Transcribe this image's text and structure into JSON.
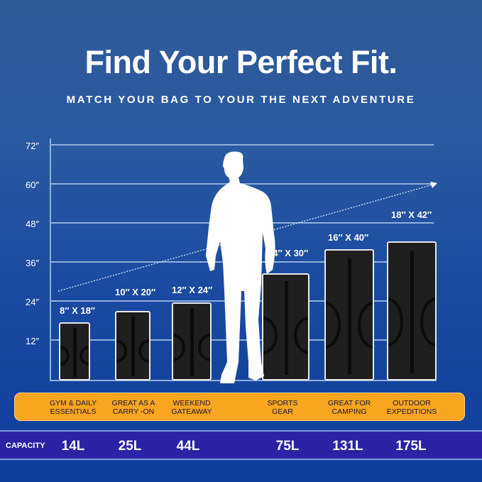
{
  "title": "Find Your Perfect Fit.",
  "subtitle": "MATCH YOUR BAG TO YOUR THE NEXT ADVENTURE",
  "height_ticks": [
    "72″",
    "60″",
    "48″",
    "36″",
    "24″",
    "12″"
  ],
  "bags": [
    {
      "size": "8″ X 18″",
      "use_line1": "GYM & DAILY",
      "use_line2": "ESSENTIALS",
      "capacity": "14L"
    },
    {
      "size": "10″ X 20″",
      "use_line1": "GREAT AS A",
      "use_line2": "CARRY -ON",
      "capacity": "25L"
    },
    {
      "size": "12″ X 24″",
      "use_line1": "WEEKEND",
      "use_line2": "GATEAWAY",
      "capacity": "44L"
    },
    {
      "size": "14″ X 30″",
      "use_line1": "SPORTS",
      "use_line2": "GEAR",
      "capacity": "75L"
    },
    {
      "size": "16″ X 40″",
      "use_line1": "GREAT FOR",
      "use_line2": "CAMPING",
      "capacity": "131L"
    },
    {
      "size": "18″ X 42″",
      "use_line1": "OUTDOOR",
      "use_line2": "EXPEDITIONS",
      "capacity": "175L"
    }
  ],
  "capacity_label": "CAPACITY",
  "colors": {
    "background": "#1f4f9e",
    "use_band": "#f8a51f",
    "capacity_band": "#2b22a6",
    "bag": "#1f1f1f"
  }
}
